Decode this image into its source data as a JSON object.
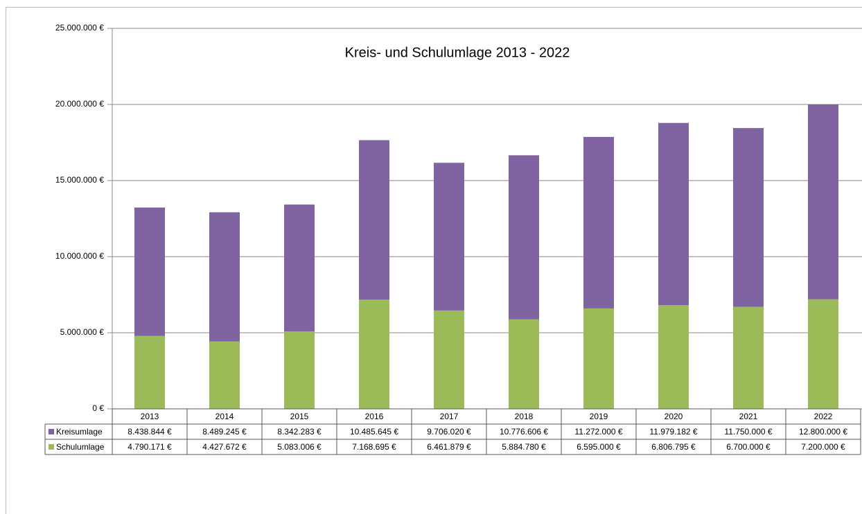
{
  "chart_data": {
    "type": "stacked_bar",
    "title": "Kreis- und Schulumlage 2013 - 2022",
    "categories": [
      "2013",
      "2014",
      "2015",
      "2016",
      "2017",
      "2018",
      "2019",
      "2020",
      "2021",
      "2022"
    ],
    "series": [
      {
        "name": "Kreisumlage",
        "color": "#8064a2",
        "values": [
          8438844,
          8489245,
          8342283,
          10485645,
          9706020,
          10776606,
          11272000,
          11979182,
          11750000,
          12800000
        ],
        "value_labels": [
          "8.438.844 €",
          "8.489.245 €",
          "8.342.283 €",
          "10.485.645 €",
          "9.706.020 €",
          "10.776.606 €",
          "11.272.000 €",
          "11.979.182 €",
          "11.750.000 €",
          "12.800.000 €"
        ]
      },
      {
        "name": "Schulumlage",
        "color": "#9bbb59",
        "values": [
          4790171,
          4427672,
          5083006,
          7168695,
          6461879,
          5884780,
          6595000,
          6806795,
          6700000,
          7200000
        ],
        "value_labels": [
          "4.790.171 €",
          "4.427.672 €",
          "5.083.006 €",
          "7.168.695 €",
          "6.461.879 €",
          "5.884.780 €",
          "6.595.000 €",
          "6.806.795 €",
          "6.700.000 €",
          "7.200.000 €"
        ]
      }
    ],
    "ylim": [
      0,
      25000000
    ],
    "yticks": [
      {
        "value": 0,
        "label": "0 €"
      },
      {
        "value": 5000000,
        "label": "5.000.000 €"
      },
      {
        "value": 10000000,
        "label": "10.000.000 €"
      },
      {
        "value": 15000000,
        "label": "15.000.000 €"
      },
      {
        "value": 20000000,
        "label": "20.000.000 €"
      },
      {
        "value": 25000000,
        "label": "25.000.000 €"
      }
    ],
    "grid": true
  }
}
